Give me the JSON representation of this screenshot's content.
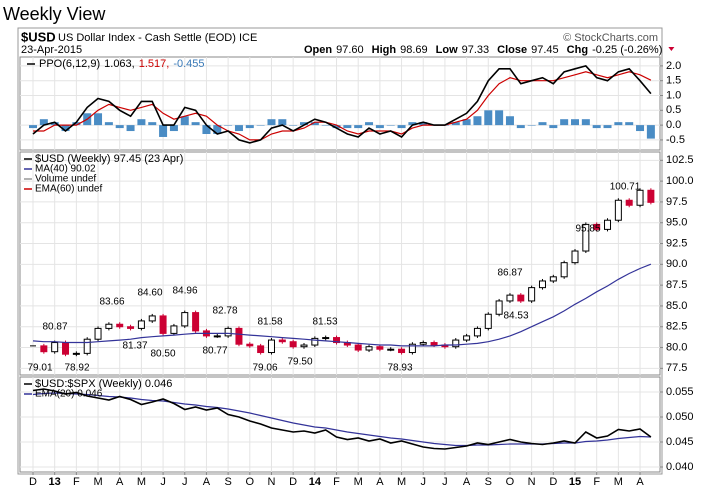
{
  "title": "Weekly View",
  "header": {
    "symbol": "$USD",
    "name": "US Dollar Index - Cash Settle (EOD) ICE",
    "date": "23-Apr-2015",
    "credit": "© StockCharts.com",
    "quote": [
      {
        "name": "Open",
        "value": "97.60"
      },
      {
        "name": "High",
        "value": "98.69"
      },
      {
        "name": "Low",
        "value": "97.33"
      },
      {
        "name": "Close",
        "value": "97.45"
      },
      {
        "name": "Chg",
        "value": "-0.25 (-0.26%)"
      }
    ]
  },
  "chart_data": [
    {
      "type": "line",
      "legend": [
        {
          "text": "PPO(6,12,9)",
          "color": "#000000"
        },
        {
          "text": "1.063,",
          "color": "#000000"
        },
        {
          "text": "1.517,",
          "color": "#cc0000"
        },
        {
          "text": "-0.455",
          "color": "#3a7ab8"
        }
      ],
      "ylim": [
        -0.84,
        2.3
      ],
      "yticks": [
        {
          "value": 2,
          "label": "2.0"
        },
        1.5,
        {
          "value": 1,
          "label": "1.0"
        },
        0.5,
        {
          "value": 0,
          "label": "0.0"
        },
        -0.5
      ],
      "grid": true,
      "series": [
        {
          "style": "bar",
          "color": "#4a8cc4",
          "values": [
            -0.1,
            0.2,
            0.1,
            -0.2,
            0.1,
            0.4,
            0.4,
            0.1,
            -0.1,
            -0.2,
            0.2,
            0.1,
            -0.4,
            -0.2,
            0.3,
            0.1,
            -0.3,
            -0.3,
            0.0,
            -0.2,
            -0.1,
            0.0,
            0.2,
            0.2,
            0.0,
            0.1,
            0.1,
            0.0,
            -0.1,
            -0.1,
            -0.1,
            0.1,
            -0.1,
            0.0,
            -0.1,
            0.1,
            0.1,
            0.0,
            0.0,
            0.1,
            0.2,
            0.3,
            0.5,
            0.5,
            0.3,
            -0.1,
            0.0,
            0.1,
            -0.1,
            0.2,
            0.2,
            0.2,
            -0.1,
            -0.1,
            0.1,
            0.1,
            -0.2,
            -0.455
          ]
        },
        {
          "style": "line",
          "color": "#cc0000",
          "values": [
            -0.2,
            -0.2,
            0.0,
            0.0,
            0.0,
            0.2,
            0.5,
            0.7,
            0.6,
            0.5,
            0.6,
            0.7,
            0.4,
            0.2,
            0.3,
            0.4,
            0.3,
            0.0,
            -0.2,
            -0.3,
            -0.5,
            -0.5,
            -0.3,
            -0.2,
            -0.2,
            -0.1,
            0.1,
            0.1,
            0.0,
            -0.2,
            -0.3,
            -0.2,
            -0.2,
            -0.2,
            -0.3,
            -0.1,
            0.0,
            0.0,
            0.0,
            0.1,
            0.2,
            0.5,
            1.0,
            1.4,
            1.6,
            1.5,
            1.5,
            1.5,
            1.5,
            1.6,
            1.7,
            1.8,
            1.7,
            1.6,
            1.7,
            1.8,
            1.7,
            1.517
          ]
        },
        {
          "style": "line",
          "color": "#000000",
          "values": [
            -0.3,
            0.0,
            0.1,
            -0.2,
            0.1,
            0.6,
            0.9,
            0.8,
            0.5,
            0.3,
            0.8,
            0.8,
            0.0,
            0.0,
            0.6,
            0.5,
            0.0,
            -0.3,
            -0.2,
            -0.5,
            -0.6,
            -0.5,
            -0.1,
            0.0,
            -0.2,
            0.0,
            0.2,
            0.1,
            -0.1,
            -0.3,
            -0.4,
            -0.1,
            -0.3,
            -0.2,
            -0.4,
            0.0,
            0.1,
            0.0,
            0.0,
            0.2,
            0.4,
            0.8,
            1.5,
            1.9,
            1.9,
            1.4,
            1.5,
            1.6,
            1.4,
            1.8,
            1.9,
            2.0,
            1.6,
            1.5,
            1.8,
            1.9,
            1.5,
            1.063
          ]
        }
      ]
    },
    {
      "type": "candlestick",
      "legend": [
        {
          "text": "$USD (Weekly) 97.45 (23 Apr)",
          "color": "#000000"
        },
        {
          "text": "MA(40) 90.02",
          "color": "#333399"
        },
        {
          "text": "Volume undef",
          "color": "#999999"
        },
        {
          "text": "EMA(60) undef",
          "color": "#cc0000"
        }
      ],
      "ylim": [
        76.7,
        103.5
      ],
      "yticks": [
        102.5,
        {
          "value": 100,
          "label": "100.0"
        },
        97.5,
        {
          "value": 95,
          "label": "95.0"
        },
        92.5,
        {
          "value": 90,
          "label": "90.0"
        },
        87.5,
        {
          "value": 85,
          "label": "85.0"
        },
        82.5,
        {
          "value": 80,
          "label": "80.0"
        },
        77.5
      ],
      "grid": true,
      "annotations": [
        80.87,
        79.01,
        78.92,
        83.66,
        81.37,
        {
          "value": 84.6,
          "label": "84.60"
        },
        {
          "value": 80.5,
          "label": "80.50"
        },
        84.96,
        80.77,
        82.78,
        81.58,
        79.06,
        {
          "value": 79.5,
          "label": "79.50"
        },
        81.53,
        78.93,
        86.87,
        84.53,
        95.85,
        100.71
      ],
      "series": [
        {
          "style": "candle",
          "color": "#000000",
          "down_color": "#cc0033",
          "values": [
            80.2,
            79.5,
            80.6,
            79.2,
            79.3,
            81.0,
            82.3,
            82.8,
            82.5,
            82.3,
            83.2,
            83.8,
            81.7,
            82.6,
            84.2,
            82.0,
            81.4,
            81.4,
            82.3,
            80.4,
            80.2,
            79.4,
            80.9,
            80.7,
            80.1,
            80.3,
            81.1,
            81.2,
            80.6,
            80.3,
            79.7,
            80.1,
            79.8,
            79.8,
            79.4,
            80.4,
            80.6,
            80.3,
            80.1,
            80.9,
            81.4,
            82.3,
            84.0,
            85.6,
            86.3,
            85.6,
            87.2,
            88.0,
            88.5,
            90.2,
            91.6,
            94.8,
            94.2,
            95.3,
            97.7,
            97.1,
            98.9,
            97.45
          ]
        },
        {
          "style": "line",
          "color": "#333399",
          "values": [
            80.8,
            80.7,
            80.7,
            80.6,
            80.6,
            80.6,
            80.7,
            80.8,
            80.9,
            81.0,
            81.2,
            81.3,
            81.4,
            81.5,
            81.6,
            81.7,
            81.7,
            81.7,
            81.7,
            81.6,
            81.5,
            81.4,
            81.3,
            81.2,
            81.1,
            81.0,
            80.9,
            80.8,
            80.7,
            80.6,
            80.5,
            80.4,
            80.3,
            80.3,
            80.2,
            80.2,
            80.2,
            80.2,
            80.3,
            80.3,
            80.4,
            80.5,
            80.7,
            81.0,
            81.4,
            81.9,
            82.5,
            83.1,
            83.7,
            84.4,
            85.2,
            85.9,
            86.7,
            87.4,
            88.2,
            88.9,
            89.5,
            90.02
          ]
        }
      ]
    },
    {
      "type": "line",
      "legend": [
        {
          "text": "$USD:$SPX (Weekly) 0.046",
          "color": "#000000"
        },
        {
          "text": "EMA(20) 0.046",
          "color": "#333399"
        }
      ],
      "ylim": [
        0.039,
        0.058
      ],
      "yticks": [
        0.055,
        {
          "value": 0.05,
          "label": "0.050"
        },
        0.045,
        {
          "value": 0.04,
          "label": "0.040"
        }
      ],
      "grid": true,
      "categories": [
        "D",
        null,
        "13",
        null,
        "F",
        null,
        "M",
        null,
        "A",
        null,
        "M",
        null,
        "J",
        null,
        "J",
        null,
        "A",
        null,
        "S",
        null,
        "O",
        null,
        "N",
        null,
        "D",
        null,
        "14",
        null,
        "F",
        null,
        "M",
        null,
        "A",
        null,
        "M",
        null,
        "J",
        null,
        "J",
        null,
        "A",
        null,
        "S",
        null,
        "O",
        null,
        "N",
        null,
        "D",
        null,
        "15",
        null,
        "F",
        null,
        "M",
        null,
        "A",
        null
      ],
      "series": [
        {
          "style": "line",
          "color": "#333399",
          "values": [
            0.0545,
            0.0547,
            0.0548,
            0.0547,
            0.0546,
            0.0545,
            0.0543,
            0.0541,
            0.054,
            0.0538,
            0.0535,
            0.0533,
            0.0532,
            0.0529,
            0.0526,
            0.0524,
            0.0521,
            0.0519,
            0.0516,
            0.0512,
            0.0508,
            0.0503,
            0.0498,
            0.0493,
            0.0488,
            0.0484,
            0.048,
            0.0478,
            0.0474,
            0.047,
            0.0467,
            0.0464,
            0.0461,
            0.0458,
            0.0456,
            0.0453,
            0.045,
            0.0447,
            0.0445,
            0.0443,
            0.0443,
            0.0444,
            0.0444,
            0.0445,
            0.0446,
            0.0446,
            0.0446,
            0.0446,
            0.0447,
            0.0448,
            0.0448,
            0.0451,
            0.0452,
            0.0454,
            0.0457,
            0.0459,
            0.0461,
            0.046
          ]
        },
        {
          "style": "line",
          "color": "#000000",
          "values": [
            0.0553,
            0.0556,
            0.0552,
            0.0546,
            0.0549,
            0.0542,
            0.0538,
            0.0534,
            0.0541,
            0.0535,
            0.0525,
            0.053,
            0.0536,
            0.0527,
            0.0515,
            0.052,
            0.0514,
            0.0518,
            0.0505,
            0.05,
            0.0492,
            0.0486,
            0.0478,
            0.0474,
            0.047,
            0.0472,
            0.0468,
            0.0474,
            0.046,
            0.0455,
            0.0458,
            0.0452,
            0.0456,
            0.0448,
            0.0452,
            0.0446,
            0.044,
            0.0437,
            0.0436,
            0.0439,
            0.0442,
            0.0448,
            0.0445,
            0.045,
            0.0455,
            0.045,
            0.0447,
            0.0445,
            0.0448,
            0.0452,
            0.0448,
            0.047,
            0.0458,
            0.0462,
            0.0475,
            0.0472,
            0.0476,
            0.046
          ]
        }
      ]
    }
  ]
}
